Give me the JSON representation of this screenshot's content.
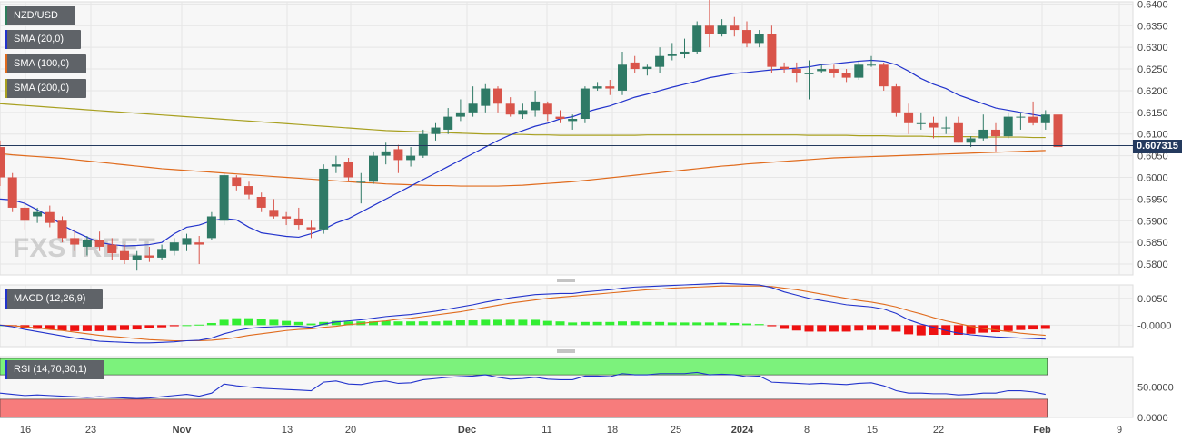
{
  "legends": [
    {
      "label": "NZD/USD",
      "color": "#2e7d5b"
    },
    {
      "label": "SMA (20,0)",
      "color": "#2233cc"
    },
    {
      "label": "SMA (100,0)",
      "color": "#e06b1d"
    },
    {
      "label": "SMA (200,0)",
      "color": "#a8a020"
    },
    {
      "label": "MACD (12,26,9)",
      "color": "#2233cc"
    },
    {
      "label": "RSI (14,70,30,1)",
      "color": "#2233cc"
    }
  ],
  "watermark": "FXSTREET",
  "last_price": "0.607315",
  "colors": {
    "up": "#2f7a66",
    "down": "#d9544a",
    "sma20": "#2233cc",
    "sma100": "#e06b1d",
    "sma200": "#a8a020",
    "macd_line": "#2233cc",
    "signal_line": "#e06b1d",
    "hist_pos": "#33ee33",
    "hist_neg": "#ee1111",
    "rsi_overbought": "#7cf27c",
    "rsi_oversold": "#f77c7c"
  },
  "chart_data": [
    {
      "type": "candlestick",
      "symbol": "NZD/USD",
      "ylim": [
        0.5775,
        0.6405
      ],
      "yticks": [
        "0.6400",
        "0.6350",
        "0.6300",
        "0.6250",
        "0.6200",
        "0.6150",
        "0.6100",
        "0.6050",
        "0.6000",
        "0.5950",
        "0.5900",
        "0.5850",
        "0.5800"
      ],
      "x_labels": [
        "16",
        "23",
        "Nov",
        "13",
        "20",
        "Dec",
        "11",
        "18",
        "25",
        "2024",
        "8",
        "15",
        "22",
        "Feb",
        "9"
      ],
      "ohlc": [
        [
          0.607,
          0.6085,
          0.598,
          0.6
        ],
        [
          0.6,
          0.601,
          0.592,
          0.593
        ],
        [
          0.593,
          0.5945,
          0.588,
          0.59
        ],
        [
          0.591,
          0.593,
          0.5895,
          0.592
        ],
        [
          0.592,
          0.5935,
          0.5885,
          0.5895
        ],
        [
          0.59,
          0.591,
          0.585,
          0.586
        ],
        [
          0.586,
          0.588,
          0.583,
          0.5845
        ],
        [
          0.584,
          0.5865,
          0.582,
          0.5855
        ],
        [
          0.5855,
          0.5875,
          0.583,
          0.584
        ],
        [
          0.5845,
          0.586,
          0.581,
          0.5825
        ],
        [
          0.583,
          0.5845,
          0.58,
          0.581
        ],
        [
          0.581,
          0.583,
          0.5785,
          0.582
        ],
        [
          0.582,
          0.584,
          0.5805,
          0.5815
        ],
        [
          0.5815,
          0.5845,
          0.581,
          0.5835
        ],
        [
          0.583,
          0.586,
          0.582,
          0.585
        ],
        [
          0.5845,
          0.587,
          0.583,
          0.586
        ],
        [
          0.585,
          0.5865,
          0.58,
          0.5845
        ],
        [
          0.586,
          0.592,
          0.5855,
          0.591
        ],
        [
          0.59,
          0.601,
          0.589,
          0.6005
        ],
        [
          0.6,
          0.6005,
          0.597,
          0.598
        ],
        [
          0.598,
          0.599,
          0.595,
          0.596
        ],
        [
          0.5955,
          0.5965,
          0.592,
          0.593
        ],
        [
          0.5925,
          0.595,
          0.5905,
          0.591
        ],
        [
          0.591,
          0.592,
          0.589,
          0.5905
        ],
        [
          0.5905,
          0.593,
          0.588,
          0.589
        ],
        [
          0.5885,
          0.59,
          0.586,
          0.588
        ],
        [
          0.588,
          0.603,
          0.587,
          0.602
        ],
        [
          0.6025,
          0.605,
          0.601,
          0.603
        ],
        [
          0.6035,
          0.6045,
          0.599,
          0.6
        ],
        [
          0.599,
          0.601,
          0.594,
          0.599
        ],
        [
          0.599,
          0.606,
          0.5985,
          0.605
        ],
        [
          0.605,
          0.608,
          0.603,
          0.606
        ],
        [
          0.6065,
          0.6075,
          0.601,
          0.604
        ],
        [
          0.604,
          0.607,
          0.6025,
          0.605
        ],
        [
          0.605,
          0.611,
          0.6045,
          0.61
        ],
        [
          0.61,
          0.6125,
          0.6085,
          0.6115
        ],
        [
          0.611,
          0.616,
          0.61,
          0.614
        ],
        [
          0.614,
          0.618,
          0.613,
          0.615
        ],
        [
          0.615,
          0.621,
          0.614,
          0.617
        ],
        [
          0.6165,
          0.6215,
          0.615,
          0.6205
        ],
        [
          0.6205,
          0.621,
          0.615,
          0.617
        ],
        [
          0.617,
          0.6185,
          0.614,
          0.6145
        ],
        [
          0.6145,
          0.617,
          0.6135,
          0.6155
        ],
        [
          0.6155,
          0.62,
          0.614,
          0.6175
        ],
        [
          0.617,
          0.6175,
          0.613,
          0.6145
        ],
        [
          0.614,
          0.6155,
          0.6125,
          0.6135
        ],
        [
          0.613,
          0.6145,
          0.611,
          0.6135
        ],
        [
          0.6135,
          0.621,
          0.6125,
          0.6205
        ],
        [
          0.6205,
          0.622,
          0.62,
          0.621
        ],
        [
          0.621,
          0.6225,
          0.619,
          0.6205
        ],
        [
          0.62,
          0.629,
          0.619,
          0.626
        ],
        [
          0.6265,
          0.628,
          0.624,
          0.625
        ],
        [
          0.625,
          0.626,
          0.6235,
          0.6255
        ],
        [
          0.6255,
          0.63,
          0.624,
          0.628
        ],
        [
          0.628,
          0.631,
          0.627,
          0.6285
        ],
        [
          0.6285,
          0.632,
          0.6275,
          0.629
        ],
        [
          0.629,
          0.636,
          0.6285,
          0.635
        ],
        [
          0.635,
          0.641,
          0.63,
          0.633
        ],
        [
          0.633,
          0.6365,
          0.6325,
          0.635
        ],
        [
          0.635,
          0.637,
          0.6325,
          0.634
        ],
        [
          0.634,
          0.636,
          0.63,
          0.631
        ],
        [
          0.631,
          0.634,
          0.63,
          0.633
        ],
        [
          0.633,
          0.635,
          0.624,
          0.6255
        ],
        [
          0.6255,
          0.6265,
          0.624,
          0.625
        ],
        [
          0.625,
          0.6265,
          0.622,
          0.624
        ],
        [
          0.624,
          0.627,
          0.618,
          0.624
        ],
        [
          0.6245,
          0.626,
          0.624,
          0.625
        ],
        [
          0.625,
          0.626,
          0.623,
          0.624
        ],
        [
          0.624,
          0.625,
          0.622,
          0.623
        ],
        [
          0.623,
          0.627,
          0.6225,
          0.626
        ],
        [
          0.626,
          0.628,
          0.6255,
          0.626
        ],
        [
          0.626,
          0.6265,
          0.62,
          0.621
        ],
        [
          0.621,
          0.6215,
          0.614,
          0.615
        ],
        [
          0.615,
          0.617,
          0.61,
          0.6125
        ],
        [
          0.6125,
          0.615,
          0.611,
          0.6125
        ],
        [
          0.6125,
          0.614,
          0.609,
          0.6115
        ],
        [
          0.6115,
          0.614,
          0.61,
          0.6115
        ],
        [
          0.6125,
          0.614,
          0.608,
          0.608
        ],
        [
          0.608,
          0.6095,
          0.607,
          0.609
        ],
        [
          0.609,
          0.6145,
          0.6085,
          0.611
        ],
        [
          0.611,
          0.6125,
          0.606,
          0.6095
        ],
        [
          0.6095,
          0.615,
          0.609,
          0.614
        ],
        [
          0.614,
          0.615,
          0.611,
          0.614
        ],
        [
          0.614,
          0.6175,
          0.612,
          0.6125
        ],
        [
          0.6125,
          0.6155,
          0.611,
          0.6145
        ],
        [
          0.6145,
          0.616,
          0.6065,
          0.607
        ]
      ],
      "sma20": [
        0.595,
        0.5948,
        0.594,
        0.5925,
        0.591,
        0.589,
        0.5875,
        0.5862,
        0.585,
        0.5845,
        0.5842,
        0.5843,
        0.5845,
        0.585,
        0.587,
        0.5885,
        0.589,
        0.59,
        0.5905,
        0.5902,
        0.5885,
        0.5872,
        0.5868,
        0.5864,
        0.5862,
        0.587,
        0.588,
        0.5895,
        0.5905,
        0.592,
        0.5935,
        0.595,
        0.5965,
        0.598,
        0.5995,
        0.601,
        0.6025,
        0.604,
        0.6055,
        0.607,
        0.6085,
        0.6098,
        0.6108,
        0.6118,
        0.6125,
        0.6135,
        0.614,
        0.615,
        0.6158,
        0.6165,
        0.6175,
        0.6185,
        0.6192,
        0.62,
        0.6208,
        0.6215,
        0.6222,
        0.623,
        0.6235,
        0.624,
        0.6242,
        0.6245,
        0.6248,
        0.625,
        0.6252,
        0.6255,
        0.626,
        0.6262,
        0.6265,
        0.6268,
        0.627,
        0.6268,
        0.626,
        0.6245,
        0.6228,
        0.6215,
        0.6205,
        0.619,
        0.618,
        0.617,
        0.616,
        0.6155,
        0.615,
        0.6145,
        0.614
      ],
      "sma100": [
        0.6055,
        0.6052,
        0.605,
        0.6048,
        0.6046,
        0.6044,
        0.6041,
        0.6038,
        0.6035,
        0.6032,
        0.6029,
        0.6026,
        0.6023,
        0.602,
        0.6018,
        0.6016,
        0.6014,
        0.6012,
        0.601,
        0.6008,
        0.6006,
        0.6004,
        0.6002,
        0.6,
        0.5998,
        0.5996,
        0.5994,
        0.5992,
        0.599,
        0.5988,
        0.5987,
        0.5985,
        0.5984,
        0.5983,
        0.5982,
        0.5981,
        0.5981,
        0.598,
        0.598,
        0.598,
        0.598,
        0.5981,
        0.5982,
        0.5984,
        0.5986,
        0.5988,
        0.599,
        0.5993,
        0.5996,
        0.5999,
        0.6002,
        0.6005,
        0.6008,
        0.6011,
        0.6014,
        0.6017,
        0.602,
        0.6023,
        0.6026,
        0.6028,
        0.6031,
        0.6033,
        0.6035,
        0.6037,
        0.6039,
        0.6041,
        0.6043,
        0.6045,
        0.6046,
        0.6047,
        0.6048,
        0.6049,
        0.605,
        0.6051,
        0.6052,
        0.6053,
        0.6054,
        0.6055,
        0.6056,
        0.6057,
        0.6058,
        0.6059,
        0.606,
        0.6061,
        0.6062
      ],
      "sma200": [
        0.617,
        0.6168,
        0.6166,
        0.6164,
        0.6162,
        0.616,
        0.6158,
        0.6156,
        0.6154,
        0.6152,
        0.615,
        0.6148,
        0.6146,
        0.6144,
        0.6142,
        0.614,
        0.6138,
        0.6136,
        0.6134,
        0.6132,
        0.613,
        0.6128,
        0.6126,
        0.6124,
        0.6122,
        0.612,
        0.6118,
        0.6116,
        0.6114,
        0.6112,
        0.611,
        0.6108,
        0.6107,
        0.6106,
        0.6105,
        0.6104,
        0.6103,
        0.6102,
        0.6101,
        0.61,
        0.61,
        0.6099,
        0.6099,
        0.6098,
        0.6098,
        0.6097,
        0.6097,
        0.6097,
        0.6097,
        0.6097,
        0.6097,
        0.6097,
        0.6098,
        0.6098,
        0.6098,
        0.6098,
        0.6098,
        0.6098,
        0.6098,
        0.6098,
        0.6098,
        0.6098,
        0.6098,
        0.6098,
        0.6098,
        0.6097,
        0.6097,
        0.6097,
        0.6097,
        0.6096,
        0.6096,
        0.6096,
        0.6095,
        0.6095,
        0.6095,
        0.6094,
        0.6094,
        0.6094,
        0.6094,
        0.6093,
        0.6093,
        0.6093,
        0.6093,
        0.6092,
        0.6092
      ]
    },
    {
      "type": "macd",
      "label": "MACD (12,26,9)",
      "ylim": [
        -0.004,
        0.0075
      ],
      "yticks": [
        "0.0050",
        "-0.0000"
      ],
      "macd": [
        0.0,
        -0.0003,
        -0.0008,
        -0.0012,
        -0.0016,
        -0.002,
        -0.0024,
        -0.0027,
        -0.003,
        -0.0031,
        -0.0032,
        -0.0033,
        -0.0033,
        -0.0032,
        -0.0031,
        -0.0029,
        -0.0028,
        -0.0024,
        -0.0016,
        -0.001,
        -0.0006,
        -0.0004,
        -0.0003,
        -0.0002,
        -0.0002,
        -0.0004,
        0.0002,
        0.0006,
        0.0008,
        0.001,
        0.0013,
        0.0016,
        0.0018,
        0.002,
        0.0023,
        0.0026,
        0.003,
        0.0034,
        0.0038,
        0.0043,
        0.0047,
        0.0051,
        0.0054,
        0.0057,
        0.0058,
        0.0059,
        0.0059,
        0.0062,
        0.0064,
        0.0066,
        0.0069,
        0.0071,
        0.0072,
        0.0073,
        0.0074,
        0.0075,
        0.0076,
        0.0077,
        0.0078,
        0.0077,
        0.0076,
        0.0075,
        0.007,
        0.0062,
        0.0056,
        0.005,
        0.0046,
        0.0042,
        0.0038,
        0.0036,
        0.0034,
        0.003,
        0.0022,
        0.001,
        0.0002,
        -0.0004,
        -0.001,
        -0.0015,
        -0.0018,
        -0.002,
        -0.0022,
        -0.0023,
        -0.0024,
        -0.0025,
        -0.0026
      ],
      "signal": [
        0.0,
        -0.0001,
        -0.0003,
        -0.0005,
        -0.0008,
        -0.001,
        -0.0013,
        -0.0016,
        -0.0019,
        -0.0021,
        -0.0023,
        -0.0025,
        -0.0027,
        -0.0028,
        -0.0029,
        -0.0029,
        -0.0029,
        -0.0028,
        -0.0026,
        -0.0023,
        -0.0019,
        -0.0016,
        -0.0013,
        -0.001,
        -0.0008,
        -0.0007,
        -0.0004,
        -0.0002,
        0.0001,
        0.0003,
        0.0006,
        0.0008,
        0.0011,
        0.0013,
        0.0016,
        0.0019,
        0.0022,
        0.0025,
        0.0029,
        0.0033,
        0.0037,
        0.0041,
        0.0044,
        0.0047,
        0.005,
        0.0052,
        0.0054,
        0.0056,
        0.0058,
        0.006,
        0.0062,
        0.0064,
        0.0066,
        0.0067,
        0.0069,
        0.007,
        0.0071,
        0.0072,
        0.0073,
        0.0073,
        0.0073,
        0.0073,
        0.0072,
        0.0069,
        0.0066,
        0.0062,
        0.0058,
        0.0054,
        0.005,
        0.0046,
        0.0043,
        0.0039,
        0.0034,
        0.0027,
        0.0021,
        0.0014,
        0.0008,
        0.0003,
        -0.0002,
        -0.0006,
        -0.0009,
        -0.0012,
        -0.0015,
        -0.0017,
        -0.0019
      ],
      "histogram": [
        0.0,
        -0.0002,
        -0.0005,
        -0.0007,
        -0.0008,
        -0.001,
        -0.0011,
        -0.0011,
        -0.0011,
        -0.001,
        -0.0009,
        -0.0008,
        -0.0006,
        -0.0004,
        -0.0002,
        0.0,
        0.0001,
        0.0004,
        0.001,
        0.0013,
        0.0013,
        0.0012,
        0.001,
        0.0008,
        0.0006,
        0.0003,
        0.0006,
        0.0008,
        0.0007,
        0.0007,
        0.0007,
        0.0008,
        0.0007,
        0.0007,
        0.0007,
        0.0007,
        0.0008,
        0.0009,
        0.0009,
        0.001,
        0.001,
        0.001,
        0.001,
        0.001,
        0.0008,
        0.0007,
        0.0005,
        0.0006,
        0.0006,
        0.0006,
        0.0007,
        0.0007,
        0.0006,
        0.0006,
        0.0005,
        0.0005,
        0.0005,
        0.0005,
        0.0005,
        0.0004,
        0.0003,
        0.0002,
        -0.0002,
        -0.0007,
        -0.001,
        -0.0012,
        -0.0012,
        -0.0012,
        -0.0012,
        -0.001,
        -0.0009,
        -0.0009,
        -0.0012,
        -0.0017,
        -0.0019,
        -0.0018,
        -0.0018,
        -0.0018,
        -0.0016,
        -0.0014,
        -0.0013,
        -0.0011,
        -0.0009,
        -0.0008,
        -0.0007
      ]
    },
    {
      "type": "rsi",
      "label": "RSI (14,70,30,1)",
      "ylim": [
        0,
        100
      ],
      "yticks": [
        "50.0000",
        "0.0000"
      ],
      "overbought": 70,
      "oversold": 30,
      "rsi": [
        40,
        38,
        36,
        37,
        36,
        35,
        34,
        33,
        34,
        33,
        32,
        31,
        32,
        34,
        36,
        38,
        35,
        40,
        55,
        52,
        50,
        48,
        47,
        46,
        45,
        44,
        58,
        60,
        55,
        54,
        58,
        60,
        56,
        57,
        62,
        64,
        66,
        67,
        68,
        70,
        66,
        63,
        64,
        66,
        63,
        62,
        62,
        68,
        68,
        67,
        72,
        70,
        70,
        72,
        72,
        72,
        74,
        70,
        71,
        70,
        67,
        68,
        58,
        57,
        56,
        55,
        56,
        55,
        54,
        56,
        57,
        52,
        44,
        40,
        40,
        39,
        39,
        37,
        38,
        40,
        40,
        44,
        44,
        42,
        38
      ]
    }
  ]
}
